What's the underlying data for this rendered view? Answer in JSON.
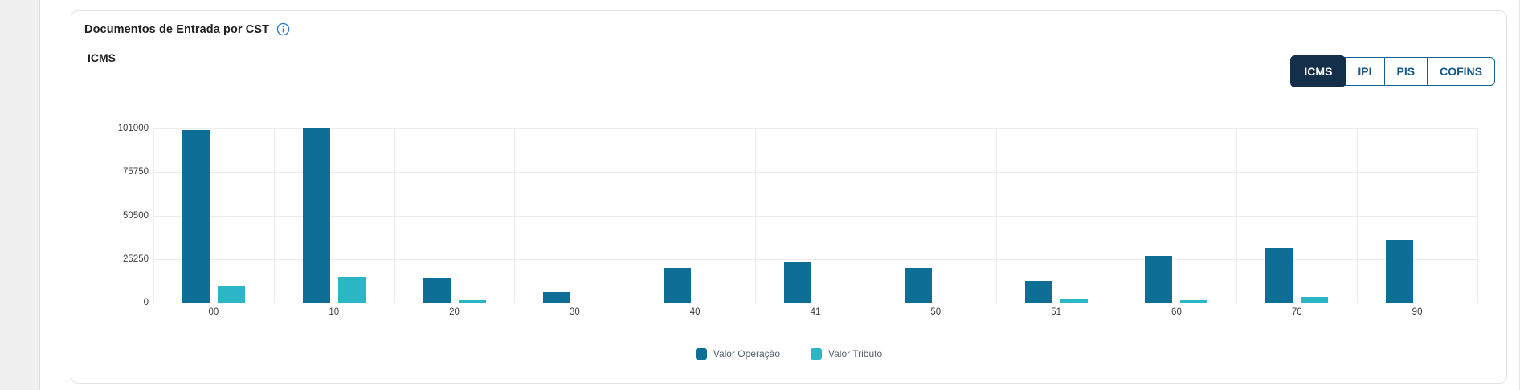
{
  "card": {
    "title": "Documentos de Entrada por CST",
    "info_icon": "info-circle-icon",
    "subtitle": "ICMS",
    "tabs": [
      {
        "label": "ICMS",
        "active": true
      },
      {
        "label": "IPI",
        "active": false
      },
      {
        "label": "PIS",
        "active": false
      },
      {
        "label": "COFINS",
        "active": false
      }
    ]
  },
  "colors": {
    "active_tab_navy": "#132f4a",
    "tab_text_blue": "#15598a",
    "tab_border_blue": "#17618f",
    "info_icon_blue": "#2e80c4",
    "series_operacao": "#0f6e96",
    "series_tributo": "#2bb6c6",
    "gridline": "#ececec"
  },
  "chart_data": {
    "type": "bar",
    "title": "Documentos de Entrada por CST",
    "subtitle": "ICMS",
    "categories": [
      "00",
      "10",
      "20",
      "30",
      "40",
      "41",
      "50",
      "51",
      "60",
      "70",
      "90"
    ],
    "series": [
      {
        "name": "Valor Operação",
        "color": "#0f6e96",
        "values": [
          100000,
          101000,
          14000,
          6000,
          20000,
          23800,
          19900,
          12400,
          26900,
          31600,
          36200
        ]
      },
      {
        "name": "Valor Tributo",
        "color": "#2bb6c6",
        "values": [
          9300,
          15000,
          1300,
          0,
          0,
          0,
          0,
          2300,
          1200,
          3200,
          0
        ]
      }
    ],
    "xlabel": "",
    "ylabel": "",
    "ylim": [
      0,
      101000
    ],
    "yticks": [
      0,
      25250,
      50500,
      75750,
      101000
    ],
    "grid": true,
    "legend_position": "bottom"
  }
}
